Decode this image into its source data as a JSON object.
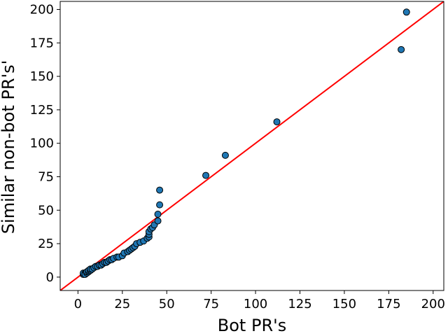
{
  "chart_data": {
    "type": "scatter",
    "title": "",
    "xlabel": "Bot PR's",
    "ylabel": "Similar non-bot PR's'",
    "xlim": [
      -10,
      206
    ],
    "ylim": [
      -10,
      206
    ],
    "xticks": [
      0,
      25,
      50,
      75,
      100,
      125,
      150,
      175,
      200
    ],
    "yticks": [
      0,
      25,
      50,
      75,
      100,
      125,
      150,
      175,
      200
    ],
    "grid": false,
    "legend": "none",
    "reference_line": {
      "slope": 1,
      "intercept": 0,
      "color": "#ff0000"
    },
    "marker_color": "#1f77b4",
    "marker_edge_color": "#000000",
    "points": [
      {
        "x": 3,
        "y": 2
      },
      {
        "x": 3,
        "y": 3
      },
      {
        "x": 4,
        "y": 3
      },
      {
        "x": 4,
        "y": 2
      },
      {
        "x": 5,
        "y": 3
      },
      {
        "x": 5,
        "y": 4
      },
      {
        "x": 6,
        "y": 4
      },
      {
        "x": 6,
        "y": 5
      },
      {
        "x": 7,
        "y": 5
      },
      {
        "x": 7,
        "y": 6
      },
      {
        "x": 8,
        "y": 6
      },
      {
        "x": 9,
        "y": 7
      },
      {
        "x": 10,
        "y": 8
      },
      {
        "x": 11,
        "y": 8
      },
      {
        "x": 12,
        "y": 9
      },
      {
        "x": 13,
        "y": 9
      },
      {
        "x": 14,
        "y": 10
      },
      {
        "x": 15,
        "y": 11
      },
      {
        "x": 16,
        "y": 11
      },
      {
        "x": 17,
        "y": 12
      },
      {
        "x": 18,
        "y": 13
      },
      {
        "x": 19,
        "y": 13
      },
      {
        "x": 20,
        "y": 14
      },
      {
        "x": 22,
        "y": 15
      },
      {
        "x": 23,
        "y": 15
      },
      {
        "x": 25,
        "y": 16
      },
      {
        "x": 26,
        "y": 18
      },
      {
        "x": 28,
        "y": 19
      },
      {
        "x": 29,
        "y": 20
      },
      {
        "x": 30,
        "y": 21
      },
      {
        "x": 31,
        "y": 22
      },
      {
        "x": 32,
        "y": 23
      },
      {
        "x": 33,
        "y": 25
      },
      {
        "x": 35,
        "y": 26
      },
      {
        "x": 37,
        "y": 27
      },
      {
        "x": 39,
        "y": 29
      },
      {
        "x": 40,
        "y": 30
      },
      {
        "x": 40,
        "y": 32
      },
      {
        "x": 40,
        "y": 34
      },
      {
        "x": 41,
        "y": 36
      },
      {
        "x": 42,
        "y": 37
      },
      {
        "x": 43,
        "y": 39
      },
      {
        "x": 45,
        "y": 42
      },
      {
        "x": 45,
        "y": 47
      },
      {
        "x": 46,
        "y": 54
      },
      {
        "x": 46,
        "y": 65
      },
      {
        "x": 72,
        "y": 76
      },
      {
        "x": 83,
        "y": 91
      },
      {
        "x": 112,
        "y": 116
      },
      {
        "x": 182,
        "y": 170
      },
      {
        "x": 185,
        "y": 198
      }
    ]
  }
}
